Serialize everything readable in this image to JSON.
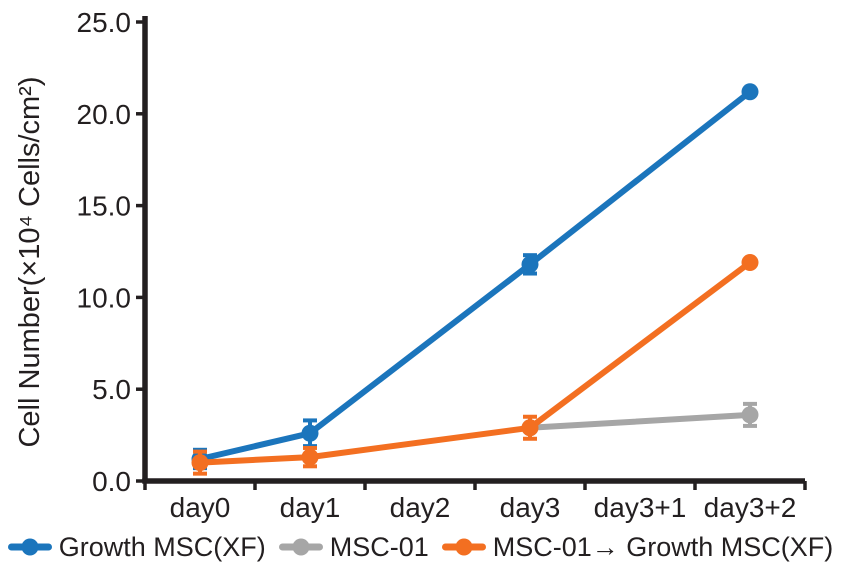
{
  "chart_data": {
    "type": "line",
    "title": "",
    "xlabel": "",
    "ylabel": "Cell Number(×10⁴ Cells/cm²)",
    "categories": [
      "day0",
      "day1",
      "day2",
      "day3",
      "day3+1",
      "day3+2"
    ],
    "ylim": [
      0,
      25
    ],
    "ytick_step": 5,
    "ytick_labels": [
      "0.0",
      "5.0",
      "10.0",
      "15.0",
      "20.0",
      "25.0"
    ],
    "grid": false,
    "legend_position": "bottom",
    "axis_color": "#231f20",
    "text_color": "#231f20",
    "background_color": "#ffffff",
    "series": [
      {
        "name": "Growth MSC(XF)",
        "color": "#1b75bc",
        "marker": "circle",
        "points": [
          {
            "x": "day0",
            "value": 1.2,
            "err": 0.5
          },
          {
            "x": "day1",
            "value": 2.6,
            "err": 0.7
          },
          {
            "x": "day3",
            "value": 11.8,
            "err": 0.5
          },
          {
            "x": "day3+2",
            "value": 21.2,
            "err": 0
          }
        ]
      },
      {
        "name": "MSC-01",
        "color": "#a6a6a6",
        "marker": "circle",
        "points": [
          {
            "x": "day3",
            "value": 2.9,
            "err": 0
          },
          {
            "x": "day3+2",
            "value": 3.6,
            "err": 0.6
          }
        ]
      },
      {
        "name": "MSC-01→ Growth MSC(XF)",
        "color": "#f36f21",
        "marker": "circle",
        "points": [
          {
            "x": "day0",
            "value": 1.0,
            "err": 0.6
          },
          {
            "x": "day1",
            "value": 1.3,
            "err": 0.5
          },
          {
            "x": "day3",
            "value": 2.9,
            "err": 0.6
          },
          {
            "x": "day3+2",
            "value": 11.9,
            "err": 0
          }
        ]
      }
    ]
  }
}
